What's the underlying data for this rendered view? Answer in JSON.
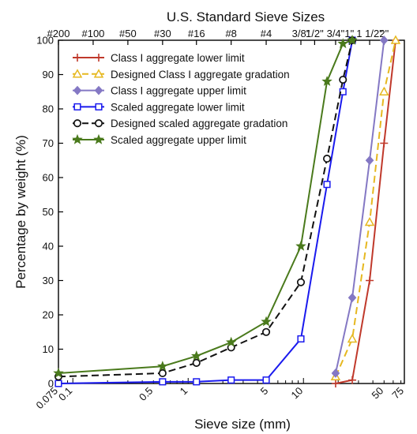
{
  "chart_data": {
    "type": "line",
    "title": "",
    "top_axis_title": "U.S. Standard Sieve Sizes",
    "top_axis_ticks": [
      {
        "label": "#200",
        "x": 0.075
      },
      {
        "label": "#100",
        "x": 0.15
      },
      {
        "label": "#50",
        "x": 0.3
      },
      {
        "label": "#30",
        "x": 0.6
      },
      {
        "label": "#16",
        "x": 1.18
      },
      {
        "label": "#8",
        "x": 2.36
      },
      {
        "label": "#4",
        "x": 4.75
      },
      {
        "label": "3/8\"",
        "x": 9.5
      },
      {
        "label": "1/2\"",
        "x": 12.5
      },
      {
        "label": "3/4\"",
        "x": 19
      },
      {
        "label": "1\"",
        "x": 25
      },
      {
        "label": "1 1/2\"",
        "x": 37.5
      },
      {
        "label": "2\"",
        "x": 50
      }
    ],
    "xlabel": "Sieve size (mm)",
    "ylabel": "Percentage by weight (%)",
    "xscale": "log",
    "xlim": [
      0.075,
      75
    ],
    "ylim": [
      0,
      100
    ],
    "x_tick_labels": [
      {
        "label": "0.075",
        "x": 0.075
      },
      {
        "label": "0.1",
        "x": 0.1
      },
      {
        "label": "0.5",
        "x": 0.5
      },
      {
        "label": "1",
        "x": 1
      },
      {
        "label": "5",
        "x": 5
      },
      {
        "label": "10",
        "x": 10
      },
      {
        "label": "50",
        "x": 50
      },
      {
        "label": "75",
        "x": 75
      }
    ],
    "y_ticks": [
      0,
      10,
      20,
      30,
      40,
      50,
      60,
      70,
      80,
      90,
      100
    ],
    "grid": false,
    "legend_position": "top-right",
    "series": [
      {
        "name": "Class I aggregate lower limit",
        "color": "#c0392b",
        "marker": "plus",
        "dash": "solid",
        "x": [
          19,
          26.5,
          37.5,
          50,
          63
        ],
        "y": [
          0,
          1,
          30,
          70,
          100
        ]
      },
      {
        "name": "Designed Class I aggregate gradation",
        "color": "#e6b820",
        "marker": "triangle",
        "dash": "dashed",
        "x": [
          19,
          26.5,
          37.5,
          50,
          63
        ],
        "y": [
          2,
          13,
          47,
          85,
          100
        ]
      },
      {
        "name": "Class I aggregate upper limit",
        "color": "#8478c4",
        "marker": "diamond",
        "dash": "solid",
        "x": [
          19,
          26.5,
          37.5,
          50
        ],
        "y": [
          3,
          25,
          65,
          100
        ]
      },
      {
        "name": "Scaled aggregate lower limit",
        "color": "#1a1aee",
        "marker": "square",
        "dash": "solid",
        "x": [
          0.075,
          0.6,
          1.18,
          2.36,
          4.75,
          9.5,
          16,
          22,
          26.5
        ],
        "y": [
          0,
          0.5,
          0.5,
          1,
          1,
          13,
          58,
          85,
          100
        ]
      },
      {
        "name": "Designed scaled aggregate gradation",
        "color": "#111111",
        "marker": "circle",
        "dash": "dashed",
        "x": [
          0.075,
          0.6,
          1.18,
          2.36,
          4.75,
          9.5,
          16,
          22,
          26.5
        ],
        "y": [
          2,
          3,
          6,
          10.5,
          15,
          29.5,
          65.5,
          88.5,
          100
        ]
      },
      {
        "name": "Scaled aggregate upper limit",
        "color": "#4a7a1c",
        "marker": "star",
        "dash": "solid",
        "x": [
          0.075,
          0.6,
          1.18,
          2.36,
          4.75,
          9.5,
          16,
          22,
          26.5
        ],
        "y": [
          3,
          5,
          8,
          12,
          18,
          40,
          88,
          99,
          100
        ]
      }
    ]
  }
}
